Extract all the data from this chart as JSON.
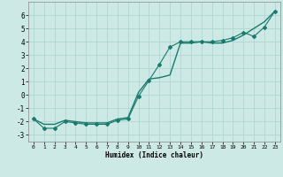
{
  "xlabel": "Humidex (Indice chaleur)",
  "background_color": "#cce9e5",
  "grid_color": "#b0d5d0",
  "line_color": "#1a7a6e",
  "xlim": [
    -0.5,
    23.5
  ],
  "ylim": [
    -3.5,
    7.0
  ],
  "x_ticks": [
    0,
    1,
    2,
    3,
    4,
    5,
    6,
    7,
    8,
    9,
    10,
    11,
    12,
    13,
    14,
    15,
    16,
    17,
    18,
    19,
    20,
    21,
    22,
    23
  ],
  "y_ticks": [
    -3,
    -2,
    -1,
    0,
    1,
    2,
    3,
    4,
    5,
    6
  ],
  "line1_x": [
    0,
    1,
    2,
    3,
    4,
    5,
    6,
    7,
    8,
    9,
    10,
    11,
    12,
    13,
    14,
    15,
    16,
    17,
    18,
    19,
    20,
    21,
    22,
    23
  ],
  "line1_y": [
    -1.8,
    -2.5,
    -2.5,
    -2.0,
    -2.1,
    -2.2,
    -2.2,
    -2.2,
    -1.9,
    -1.8,
    -0.1,
    1.1,
    2.3,
    3.6,
    4.0,
    4.0,
    4.0,
    4.0,
    4.1,
    4.3,
    4.7,
    4.4,
    5.1,
    6.3
  ],
  "line2_x": [
    0,
    1,
    2,
    3,
    4,
    5,
    6,
    7,
    8,
    9,
    10,
    11,
    12,
    13,
    14,
    15,
    16,
    17,
    18,
    19,
    20,
    21,
    22,
    23
  ],
  "line2_y": [
    -1.8,
    -2.2,
    -2.2,
    -1.9,
    -2.0,
    -2.1,
    -2.1,
    -2.1,
    -1.8,
    -1.7,
    0.2,
    1.2,
    1.3,
    1.5,
    3.9,
    3.9,
    4.0,
    3.9,
    3.9,
    4.1,
    4.5,
    5.0,
    5.5,
    6.3
  ]
}
